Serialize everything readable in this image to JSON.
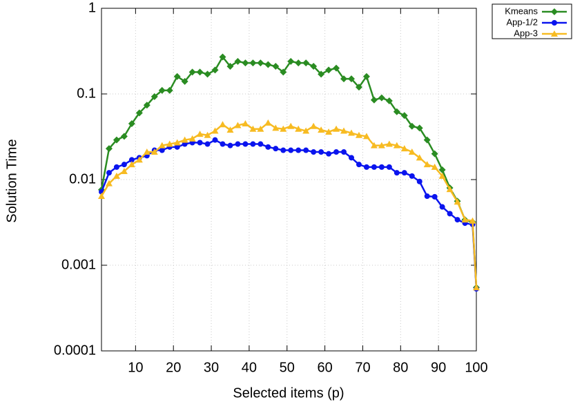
{
  "chart_data": {
    "type": "line",
    "x_label": "Selected items (p)",
    "y_label": "Solution Time",
    "x": [
      1,
      3,
      5,
      7,
      9,
      11,
      13,
      15,
      17,
      19,
      21,
      23,
      25,
      27,
      29,
      31,
      33,
      35,
      37,
      39,
      41,
      43,
      45,
      47,
      49,
      51,
      53,
      55,
      57,
      59,
      61,
      63,
      65,
      67,
      69,
      71,
      73,
      75,
      77,
      79,
      81,
      83,
      85,
      87,
      89,
      91,
      93,
      95,
      97,
      99,
      100
    ],
    "series": [
      {
        "name": "Kmeans",
        "color": "#2a8c22",
        "marker": "diamond",
        "values": [
          0.0076,
          0.023,
          0.029,
          0.032,
          0.045,
          0.06,
          0.074,
          0.093,
          0.11,
          0.11,
          0.16,
          0.14,
          0.18,
          0.18,
          0.17,
          0.19,
          0.27,
          0.21,
          0.24,
          0.23,
          0.23,
          0.23,
          0.22,
          0.21,
          0.18,
          0.24,
          0.23,
          0.23,
          0.21,
          0.17,
          0.19,
          0.2,
          0.15,
          0.15,
          0.12,
          0.16,
          0.085,
          0.09,
          0.083,
          0.062,
          0.056,
          0.042,
          0.04,
          0.029,
          0.02,
          0.013,
          0.008,
          0.0056,
          0.0034,
          0.0032,
          0.00055
        ]
      },
      {
        "name": "App-1/2",
        "color": "#0a14ee",
        "marker": "circle",
        "values": [
          0.0072,
          0.012,
          0.014,
          0.015,
          0.017,
          0.018,
          0.019,
          0.022,
          0.022,
          0.024,
          0.024,
          0.026,
          0.027,
          0.027,
          0.026,
          0.029,
          0.026,
          0.025,
          0.026,
          0.026,
          0.026,
          0.026,
          0.024,
          0.023,
          0.022,
          0.022,
          0.022,
          0.022,
          0.021,
          0.021,
          0.02,
          0.021,
          0.021,
          0.018,
          0.015,
          0.014,
          0.014,
          0.014,
          0.014,
          0.012,
          0.012,
          0.011,
          0.0095,
          0.0064,
          0.0063,
          0.0048,
          0.004,
          0.0034,
          0.0031,
          0.003,
          0.00053
        ]
      },
      {
        "name": "App-3",
        "color": "#f7bb22",
        "marker": "triangle",
        "values": [
          0.0064,
          0.009,
          0.011,
          0.0125,
          0.015,
          0.017,
          0.021,
          0.021,
          0.025,
          0.026,
          0.027,
          0.029,
          0.03,
          0.034,
          0.033,
          0.037,
          0.044,
          0.038,
          0.043,
          0.045,
          0.039,
          0.039,
          0.046,
          0.04,
          0.039,
          0.042,
          0.039,
          0.037,
          0.042,
          0.038,
          0.036,
          0.039,
          0.037,
          0.035,
          0.033,
          0.032,
          0.025,
          0.025,
          0.026,
          0.025,
          0.023,
          0.021,
          0.018,
          0.015,
          0.014,
          0.011,
          0.0077,
          0.0055,
          0.0034,
          0.0033,
          0.00055
        ]
      }
    ],
    "xlim": [
      1,
      100
    ],
    "xticks": [
      10,
      20,
      30,
      40,
      50,
      60,
      70,
      80,
      90,
      100
    ],
    "ylim": [
      0.0001,
      1
    ],
    "yticks": [
      0.0001,
      0.001,
      0.01,
      0.1,
      1
    ],
    "log_y": true,
    "grid": true,
    "legend": "top-right-outside"
  }
}
